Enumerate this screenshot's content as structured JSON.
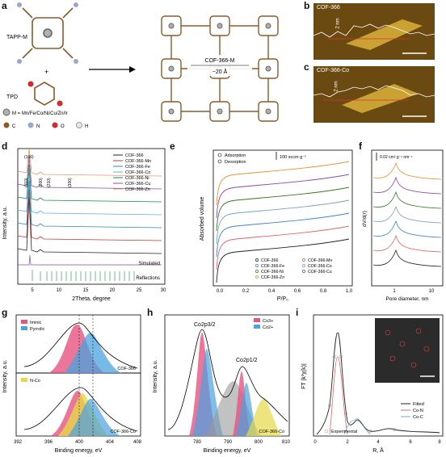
{
  "labels": {
    "a": "a",
    "b": "b",
    "c": "c",
    "d": "d",
    "e": "e",
    "f": "f",
    "g": "g",
    "h": "h",
    "i": "i"
  },
  "panel_a": {
    "monomer1": "TAPP-M",
    "monomer2": "TPD",
    "plus": "+",
    "framework_name": "COF-366-M",
    "pore_size": "~20 Å",
    "metal_note": "M = Mn/Fe/Co/Ni/Cu/Zn/Ir",
    "atoms": [
      {
        "symbol": "C",
        "color": "#8b5a2b"
      },
      {
        "symbol": "N",
        "color": "#9aa7c8"
      },
      {
        "symbol": "O",
        "color": "#d12b2b"
      },
      {
        "symbol": "H",
        "color": "#e8e8e8"
      }
    ]
  },
  "panel_b": {
    "title": "COF-366",
    "height": "2 nm"
  },
  "panel_c": {
    "title": "COF-366-Co",
    "height": "2 nm"
  },
  "panel_d": {
    "ylabel": "Intensity, a.u.",
    "xlabel": "2Theta, degree",
    "xticks": [
      "5",
      "10",
      "15",
      "20",
      "25",
      "30"
    ],
    "peaks": [
      "(100)",
      "(110)",
      "(200)",
      "(210)",
      "(300)"
    ],
    "simulated": "Simulated",
    "reflections": "Reflections",
    "legend": [
      {
        "name": "COF-366",
        "color": "#222222"
      },
      {
        "name": "COF-366-Mn",
        "color": "#c0392b"
      },
      {
        "name": "COF-366-Fe",
        "color": "#2e86c1"
      },
      {
        "name": "COF-366-Co",
        "color": "#5dade2"
      },
      {
        "name": "COF-366-Ni",
        "color": "#1e8449"
      },
      {
        "name": "COF-366-Cu",
        "color": "#884ea0"
      },
      {
        "name": "COF-366-Zn",
        "color": "#e59866"
      }
    ]
  },
  "panel_e": {
    "ylabel": "Absorbed volume",
    "xlabel": "P/P₀",
    "scale": "100 sccm g⁻¹",
    "xticks": [
      "0.0",
      "0.2",
      "0.4",
      "0.6",
      "0.8",
      "1.0"
    ],
    "legend_top": [
      "Adsorption",
      "Desorption"
    ],
    "legend": [
      {
        "name": "COF-366",
        "color": "#222222"
      },
      {
        "name": "COF-366-Mn",
        "color": "#e06666"
      },
      {
        "name": "COF-366-Fe",
        "color": "#3d85c6"
      },
      {
        "name": "COF-366-Co",
        "color": "#76a5af"
      },
      {
        "name": "COF-366-Ni",
        "color": "#38761d"
      },
      {
        "name": "COF-366-Cu",
        "color": "#8e44ad"
      },
      {
        "name": "COF-366-Zn",
        "color": "#e69138"
      }
    ]
  },
  "panel_f": {
    "ylabel": "dV/d(r)",
    "xlabel": "Pore diameter, nm",
    "scale": "0.02 cm³ g⁻¹ nm⁻¹",
    "xticks": [
      "1",
      "10"
    ]
  },
  "panel_g": {
    "ylabel": "Intensity, a.u.",
    "xlabel": "Binding energy, eV",
    "xticks": [
      "392",
      "396",
      "400",
      "404",
      "408"
    ],
    "legend_top": [
      {
        "name": "Iminic",
        "color": "#e75480"
      },
      {
        "name": "Pyrrolic",
        "color": "#4aa3df"
      }
    ],
    "legend_bottom": [
      {
        "name": "N-Co",
        "color": "#e6d84a"
      }
    ],
    "sample_top": "COF-366",
    "sample_bottom": "COF-366-Co"
  },
  "panel_h": {
    "ylabel": "Intensity, a.u.",
    "xlabel": "Binding energy,  eV",
    "xticks": [
      "780",
      "790",
      "800",
      "810"
    ],
    "peak1": "Co2p3/2",
    "peak2": "Co2p1/2",
    "legend": [
      {
        "name": "Co3+",
        "color": "#e75480"
      },
      {
        "name": "Co2+",
        "color": "#4aa3df"
      }
    ],
    "sample": "COF-366-Co"
  },
  "panel_i": {
    "ylabel": "FT |k³χ(k)|",
    "xlabel": "R, Å",
    "xticks": [
      "0",
      "2",
      "4",
      "6",
      "8"
    ],
    "legend": [
      {
        "name": "Fitted",
        "color": "#222222"
      },
      {
        "name": "Co-N",
        "color": "#e06666"
      },
      {
        "name": "Co-C",
        "color": "#6fa8dc"
      }
    ],
    "experimental": "Experimental"
  }
}
